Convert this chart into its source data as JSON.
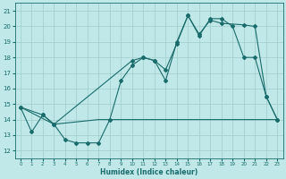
{
  "xlabel": "Humidex (Indice chaleur)",
  "bg_color": "#c0e8e8",
  "grid_color": "#a0cccc",
  "line_color": "#1a6b6b",
  "xlim": [
    -0.5,
    23.5
  ],
  "ylim": [
    11.5,
    21.5
  ],
  "yticks": [
    12,
    13,
    14,
    15,
    16,
    17,
    18,
    19,
    20,
    21
  ],
  "xticks": [
    0,
    1,
    2,
    3,
    4,
    5,
    6,
    7,
    8,
    9,
    10,
    11,
    12,
    13,
    14,
    15,
    16,
    17,
    18,
    19,
    20,
    21,
    22,
    23
  ],
  "line1_x": [
    0,
    1,
    2,
    3,
    4,
    5,
    6,
    7,
    8,
    9,
    10,
    11,
    12,
    13,
    14,
    15,
    16,
    17,
    18,
    19,
    20,
    21,
    22,
    23
  ],
  "line1_y": [
    14.8,
    13.2,
    14.3,
    13.7,
    12.7,
    12.5,
    12.5,
    12.5,
    14.0,
    16.5,
    17.5,
    18.0,
    17.8,
    17.2,
    18.9,
    20.7,
    19.4,
    20.5,
    20.5,
    20.0,
    18.0,
    18.0,
    15.5,
    14.0
  ],
  "line2_x": [
    0,
    2,
    3,
    10,
    11,
    12,
    13,
    14,
    15,
    16,
    17,
    18,
    20,
    21,
    22,
    23
  ],
  "line2_y": [
    14.8,
    14.3,
    13.7,
    17.8,
    18.0,
    17.8,
    16.5,
    19.0,
    20.7,
    19.5,
    20.4,
    20.2,
    20.1,
    20.0,
    15.5,
    14.0
  ],
  "line3_x": [
    0,
    3,
    7,
    23
  ],
  "line3_y": [
    14.8,
    13.7,
    14.0,
    14.0
  ]
}
